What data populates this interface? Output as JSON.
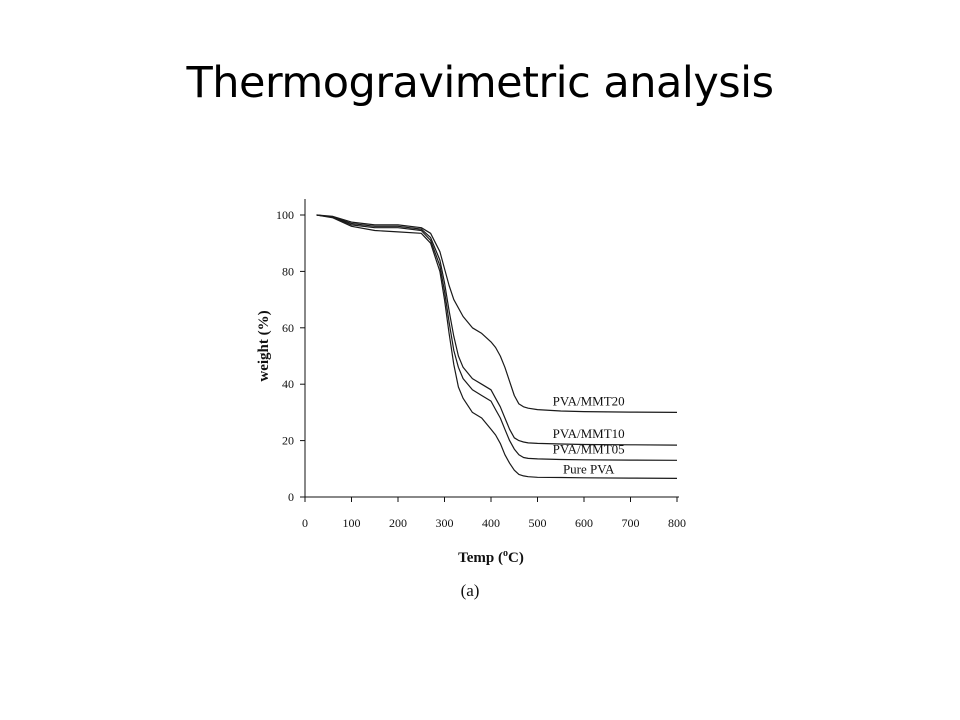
{
  "slide": {
    "title": "Thermogravimetric analysis"
  },
  "chart_data": {
    "type": "line",
    "title": "",
    "caption": "(a)",
    "xlabel": "Temp (",
    "xlabel_sup": "o",
    "xlabel_suffix": "C)",
    "ylabel": "weight (%)",
    "xlim": [
      0,
      800
    ],
    "ylim": [
      0,
      105
    ],
    "xticks": [
      0,
      100,
      200,
      300,
      400,
      500,
      600,
      700,
      800
    ],
    "yticks": [
      0,
      20,
      40,
      60,
      80,
      100
    ],
    "grid": false,
    "line_color": "#1a1a1a",
    "series": [
      {
        "name": "PVA/MMT20",
        "x": [
          25,
          60,
          100,
          150,
          200,
          250,
          270,
          290,
          300,
          310,
          320,
          340,
          360,
          380,
          400,
          410,
          420,
          430,
          440,
          450,
          460,
          470,
          480,
          500,
          550,
          600,
          700,
          800
        ],
        "y": [
          100,
          99.5,
          97.5,
          96.5,
          96.5,
          95.5,
          93.5,
          87,
          81,
          75,
          70,
          64,
          60,
          58,
          55,
          53,
          50,
          46,
          41,
          36,
          33,
          32,
          31.5,
          31,
          30.5,
          30.3,
          30.1,
          30
        ]
      },
      {
        "name": "PVA/MMT10",
        "x": [
          25,
          60,
          100,
          150,
          200,
          250,
          270,
          290,
          300,
          310,
          320,
          330,
          340,
          360,
          380,
          400,
          410,
          420,
          430,
          440,
          450,
          460,
          470,
          480,
          500,
          550,
          600,
          700,
          800
        ],
        "y": [
          100,
          99.3,
          97,
          96,
          96,
          95,
          92,
          84,
          76,
          66,
          57,
          50,
          46,
          42,
          40,
          38,
          35,
          32,
          28,
          24,
          21,
          20,
          19.5,
          19.2,
          19,
          18.8,
          18.6,
          18.5,
          18.4
        ]
      },
      {
        "name": "PVA/MMT05",
        "x": [
          25,
          60,
          100,
          150,
          200,
          250,
          270,
          290,
          300,
          310,
          320,
          330,
          340,
          360,
          380,
          400,
          410,
          420,
          430,
          440,
          450,
          460,
          470,
          480,
          500,
          550,
          600,
          700,
          800
        ],
        "y": [
          100,
          99.2,
          96.5,
          95.5,
          95.5,
          94.5,
          91,
          82,
          73,
          62,
          52,
          46,
          42,
          38,
          36,
          34,
          31,
          28,
          24,
          20,
          17,
          15,
          14,
          13.7,
          13.5,
          13.3,
          13.2,
          13.1,
          13
        ]
      },
      {
        "name": "Pure PVA",
        "x": [
          25,
          60,
          100,
          150,
          200,
          250,
          270,
          290,
          300,
          310,
          320,
          330,
          340,
          360,
          380,
          400,
          410,
          420,
          430,
          440,
          450,
          460,
          470,
          480,
          500,
          550,
          600,
          700,
          800
        ],
        "y": [
          100,
          99,
          96,
          94.5,
          94,
          93.5,
          90,
          80,
          70,
          58,
          47,
          39,
          35,
          30,
          28,
          24,
          22,
          19,
          15,
          12,
          9.5,
          8,
          7.5,
          7.2,
          7,
          6.9,
          6.8,
          6.7,
          6.6
        ]
      }
    ]
  }
}
